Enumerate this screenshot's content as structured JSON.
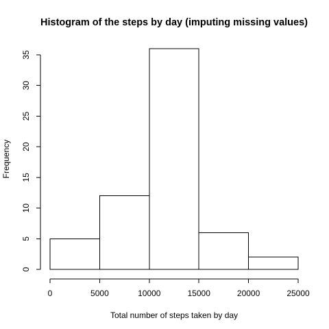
{
  "chart_data": {
    "type": "bar",
    "title": "Histogram of the steps by day (imputing missing values)",
    "xlabel": "Total number of steps taken by day",
    "ylabel": "Frequency",
    "bins": [
      {
        "start": 0,
        "end": 5000,
        "count": 5
      },
      {
        "start": 5000,
        "end": 10000,
        "count": 12
      },
      {
        "start": 10000,
        "end": 15000,
        "count": 36
      },
      {
        "start": 15000,
        "end": 20000,
        "count": 6
      },
      {
        "start": 20000,
        "end": 25000,
        "count": 2
      }
    ],
    "xlim": [
      0,
      25000
    ],
    "ylim": [
      0,
      35
    ],
    "xticks": [
      0,
      5000,
      10000,
      15000,
      20000,
      25000
    ],
    "yticks": [
      0,
      5,
      10,
      15,
      20,
      25,
      30,
      35
    ],
    "grid": false,
    "legend": "none"
  }
}
